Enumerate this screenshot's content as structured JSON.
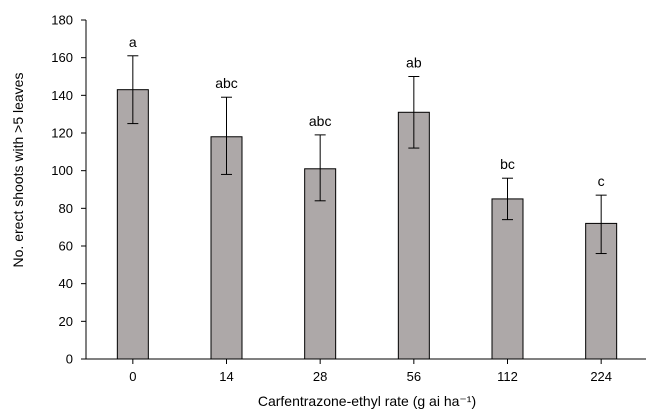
{
  "chart_data": {
    "type": "bar",
    "title": "",
    "xlabel": "Carfentrazone-ethyl rate (g ai ha⁻¹)",
    "ylabel": "No. erect shoots with >5 leaves",
    "categories": [
      "0",
      "14",
      "28",
      "56",
      "112",
      "224"
    ],
    "values": [
      143,
      118,
      101,
      131,
      85,
      72
    ],
    "error_low": [
      125,
      98,
      84,
      112,
      74,
      56
    ],
    "error_high": [
      161,
      139,
      119,
      150,
      96,
      87
    ],
    "significance_labels": [
      "a",
      "abc",
      "abc",
      "ab",
      "bc",
      "c"
    ],
    "ylim": [
      0,
      180
    ],
    "yticks": [
      "0",
      "20",
      "40",
      "60",
      "80",
      "100",
      "120",
      "140",
      "160",
      "180"
    ],
    "grid": false,
    "legend": "none",
    "colors": {
      "bar_fill": "#ada8a8",
      "bar_stroke": "#000000",
      "axis": "#000000"
    }
  }
}
